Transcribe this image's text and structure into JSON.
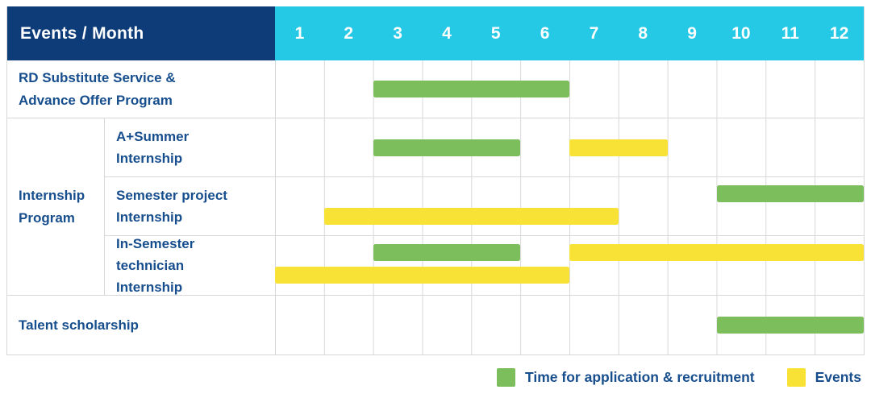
{
  "colors": {
    "navy": "#0d3c78",
    "cyan": "#25c9e6",
    "green": "#7cbe5c",
    "yellow": "#f9e236",
    "grid": "#d8d8d8",
    "text": "#174e8d"
  },
  "chart_data": {
    "type": "gantt",
    "title": "Events / Month",
    "unit": "month",
    "months": [
      "1",
      "2",
      "3",
      "4",
      "5",
      "6",
      "7",
      "8",
      "9",
      "10",
      "11",
      "12"
    ],
    "group_label": "Internship\nProgram",
    "rows": [
      {
        "label": "RD Substitute Service &\nAdvance Offer Program",
        "group": "",
        "bars": [
          {
            "color": "green",
            "start": 3,
            "end": 7,
            "line": "center"
          }
        ]
      },
      {
        "label": "A+Summer\nInternship",
        "group": "Internship Program",
        "bars": [
          {
            "color": "green",
            "start": 3,
            "end": 6,
            "line": "center"
          },
          {
            "color": "yellow",
            "start": 7,
            "end": 9,
            "line": "center"
          }
        ]
      },
      {
        "label": "Semester project\nInternship",
        "group": "Internship Program",
        "bars": [
          {
            "color": "green",
            "start": 10,
            "end": 13,
            "line": "top"
          },
          {
            "color": "yellow",
            "start": 2,
            "end": 8,
            "line": "bottom"
          }
        ]
      },
      {
        "label": "In-Semester\ntechnician Internship",
        "group": "Internship Program",
        "bars": [
          {
            "color": "green",
            "start": 3,
            "end": 6,
            "line": "top"
          },
          {
            "color": "yellow",
            "start": 7,
            "end": 13,
            "line": "top"
          },
          {
            "color": "yellow",
            "start": 1,
            "end": 7,
            "line": "bottom"
          }
        ]
      },
      {
        "label": "Talent scholarship",
        "group": "",
        "bars": [
          {
            "color": "green",
            "start": 10,
            "end": 13,
            "line": "center"
          }
        ]
      }
    ],
    "legend": [
      {
        "color": "green",
        "label": "Time for application & recruitment"
      },
      {
        "color": "yellow",
        "label": "Events"
      }
    ]
  }
}
